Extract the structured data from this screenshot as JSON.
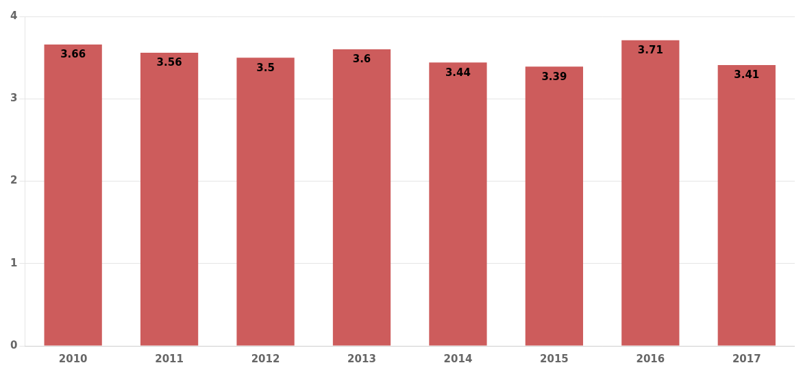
{
  "chart_data": {
    "type": "bar",
    "categories": [
      "2010",
      "2011",
      "2012",
      "2013",
      "2014",
      "2015",
      "2016",
      "2017"
    ],
    "values": [
      3.66,
      3.56,
      3.5,
      3.6,
      3.44,
      3.39,
      3.71,
      3.41
    ],
    "color": "#cd5c5c",
    "ylim": [
      0,
      4
    ],
    "yticks": [
      0,
      1,
      2,
      3,
      4
    ],
    "grid": true,
    "data_labels": true
  }
}
